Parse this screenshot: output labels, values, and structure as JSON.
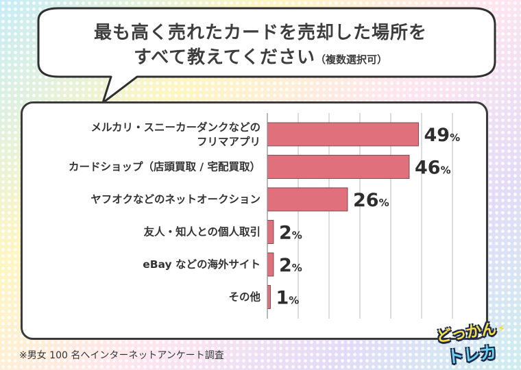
{
  "question": {
    "line1": "最も高く売れたカードを売却した場所を",
    "line2": "すべて教えてください",
    "note": "（複数選択可）"
  },
  "footnote": "※男女 100 名へインターネットアンケート調査",
  "logo": {
    "line1": "どっかん",
    "line2": "トレカ"
  },
  "colors": {
    "bar": "#e0707c",
    "bar_edge": "#5a3a3a",
    "grid": "#b9b9b9",
    "panel_border": "#3a3a3a"
  },
  "chart_data": {
    "type": "bar",
    "orientation": "horizontal",
    "title": "",
    "xlabel": "",
    "ylabel": "",
    "unit": "%",
    "xlim": [
      0,
      60
    ],
    "grid": true,
    "categories": [
      [
        "メルカリ・スニーカーダンクなどの",
        "フリマアプリ"
      ],
      [
        "カードショップ（店頭買取 / 宅配買取）"
      ],
      [
        "ヤフオクなどのネットオークション"
      ],
      [
        "友人・知人との個人取引"
      ],
      [
        "eBay などの海外サイト"
      ],
      [
        "その他"
      ]
    ],
    "values": [
      49,
      46,
      26,
      2,
      2,
      1
    ]
  }
}
